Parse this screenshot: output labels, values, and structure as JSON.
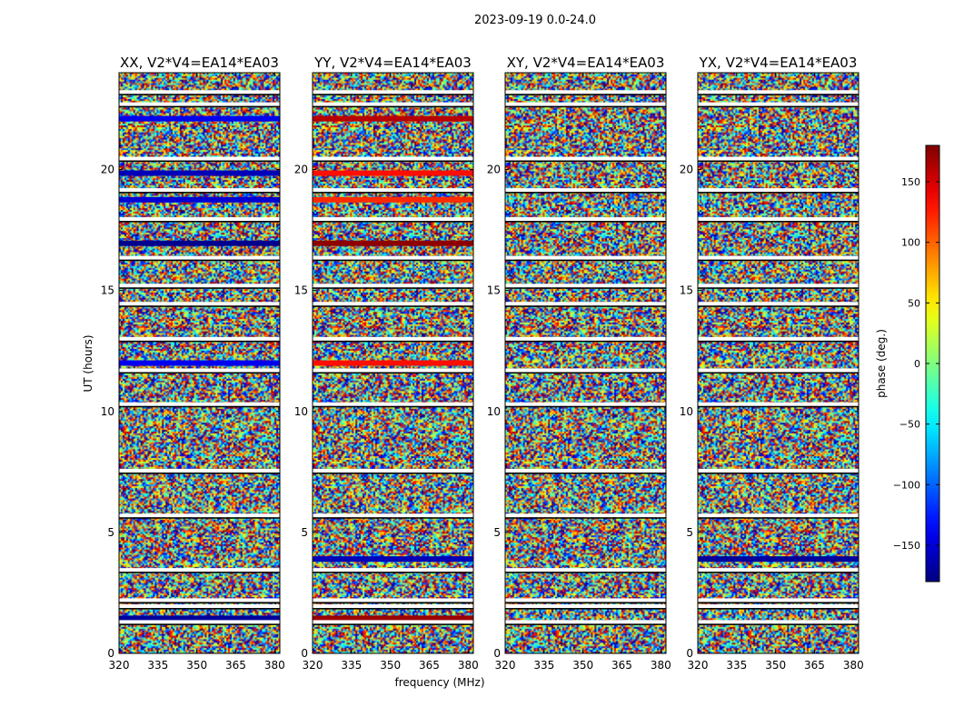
{
  "figure_title": "2023-09-19 0.0-24.0",
  "chart_data": {
    "type": "heatmap",
    "xlabel": "frequency (MHz)",
    "ylabel": "UT (hours)",
    "xlim": [
      320,
      382
    ],
    "ylim": [
      0,
      24
    ],
    "xticks": [
      320,
      335,
      350,
      365,
      380
    ],
    "yticks": [
      0,
      5,
      10,
      15,
      20
    ],
    "panels": [
      {
        "title": "XX, V2*V4=EA14*EA03"
      },
      {
        "title": "YY, V2*V4=EA14*EA03"
      },
      {
        "title": "XY, V2*V4=EA14*EA03"
      },
      {
        "title": "YX, V2*V4=EA14*EA03"
      }
    ],
    "colorbar": {
      "label": "phase (deg.)",
      "range": [
        -180,
        180
      ],
      "ticks": [
        -150,
        -100,
        -50,
        0,
        50,
        100,
        150
      ],
      "colormap": "jet"
    },
    "flagged_ut_hours": [
      1.3,
      1.95,
      2.2,
      3.45,
      5.7,
      7.55,
      10.3,
      11.7,
      13.0,
      14.45,
      15.2,
      16.35,
      17.95,
      19.15,
      20.45,
      22.7,
      23.2
    ],
    "coherent_rows": [
      {
        "ut": 22.1,
        "phase": [
          -140,
          160,
          null,
          null
        ]
      },
      {
        "ut": 19.85,
        "phase": [
          -160,
          130,
          null,
          null
        ]
      },
      {
        "ut": 18.75,
        "phase": [
          -150,
          120,
          null,
          null
        ]
      },
      {
        "ut": 16.95,
        "phase": [
          -175,
          175,
          null,
          null
        ]
      },
      {
        "ut": 12.0,
        "phase": [
          -140,
          130,
          null,
          null
        ]
      },
      {
        "ut": 3.9,
        "phase": [
          null,
          -160,
          null,
          -170
        ]
      },
      {
        "ut": 1.45,
        "phase": [
          -170,
          170,
          null,
          null
        ]
      }
    ]
  }
}
